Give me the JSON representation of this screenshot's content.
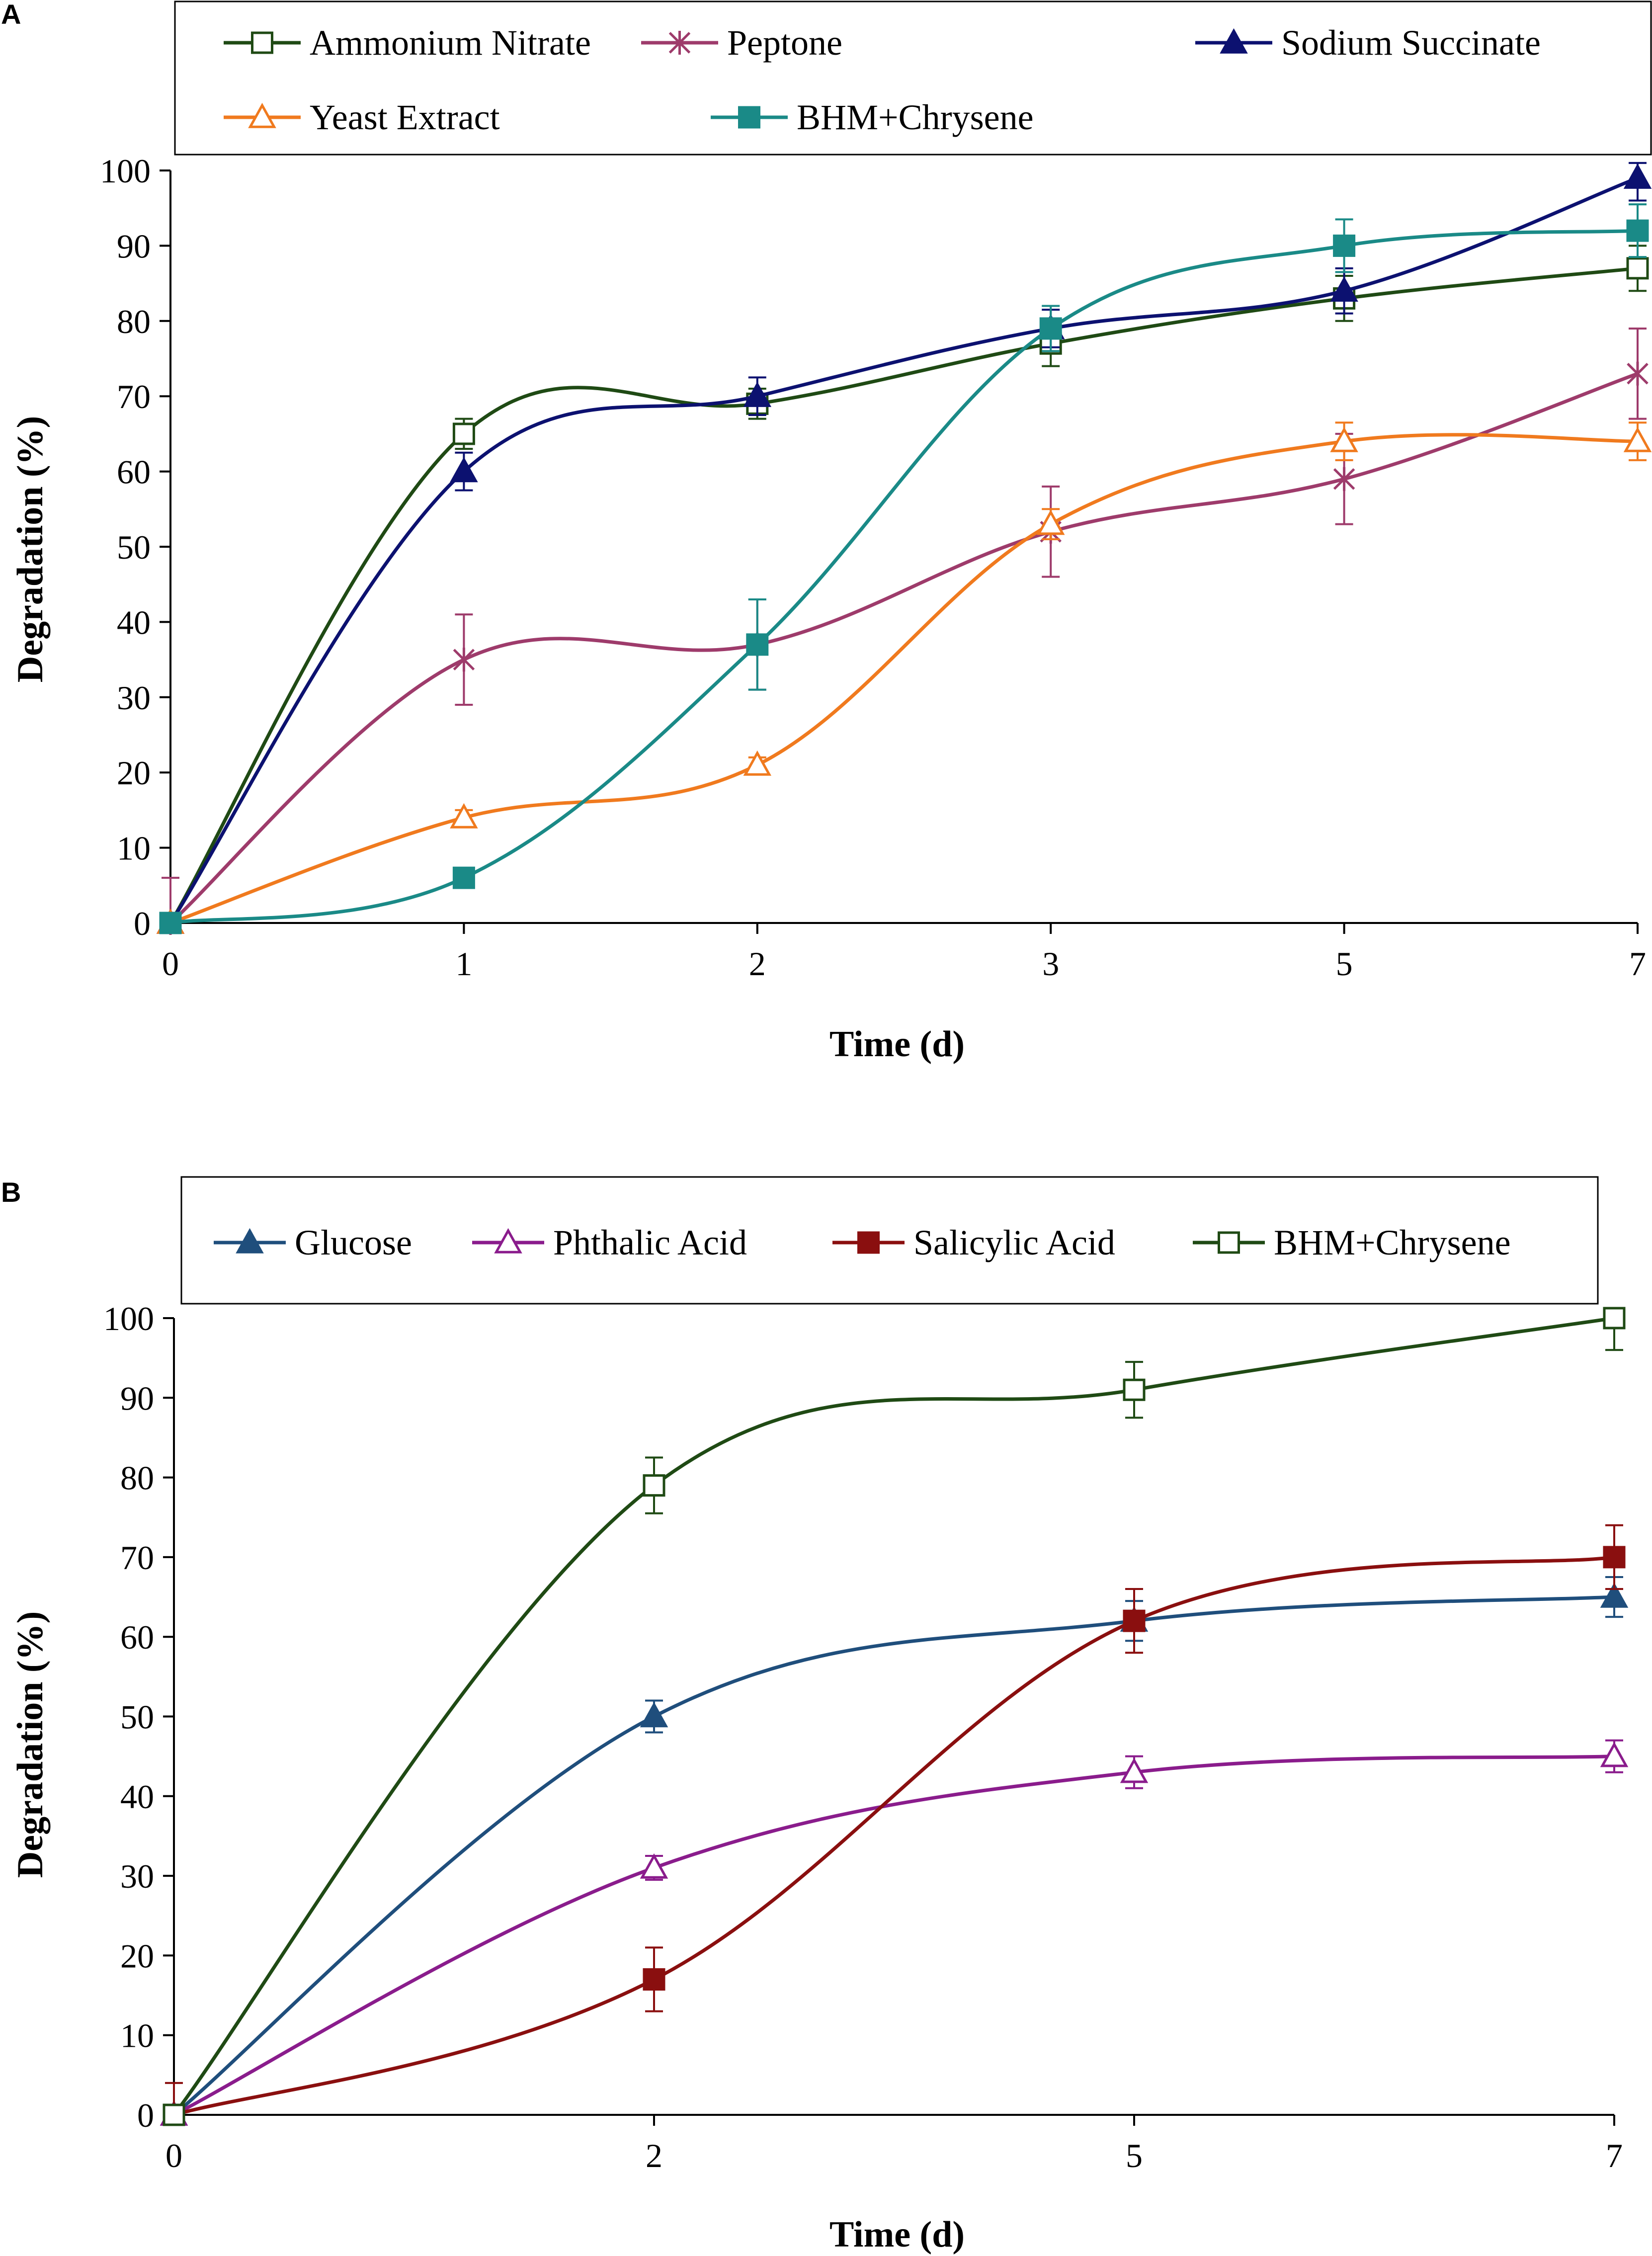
{
  "chart_data": [
    {
      "type": "line",
      "panel": "A",
      "xlabel": "Time (d)",
      "ylabel": "Degradation (%)",
      "categories": [
        "0",
        "1",
        "2",
        "3",
        "5",
        "7"
      ],
      "ylim": [
        0,
        100
      ],
      "yticks": [
        0,
        10,
        20,
        30,
        40,
        50,
        60,
        70,
        80,
        90,
        100
      ],
      "grid": false,
      "legend": "top",
      "series": [
        {
          "name": "Ammonium Nitrate",
          "color": "#1f4a14",
          "marker": "square-open",
          "values": [
            0,
            65,
            69,
            77,
            83,
            87
          ],
          "errors": [
            0,
            2,
            2,
            3,
            3,
            3
          ]
        },
        {
          "name": "Peptone",
          "color": "#9e3b6b",
          "marker": "star",
          "values": [
            0,
            35,
            37,
            52,
            59,
            73
          ],
          "errors": [
            6,
            6,
            6,
            6,
            6,
            6
          ]
        },
        {
          "name": "Sodium Succinate",
          "color": "#0c1170",
          "marker": "triangle-filled",
          "values": [
            0,
            60,
            70,
            79,
            84,
            99
          ],
          "errors": [
            0,
            2.5,
            2.5,
            2.5,
            3,
            3
          ]
        },
        {
          "name": "Yeast Extract",
          "color": "#f07a1e",
          "marker": "triangle-open",
          "values": [
            0,
            14,
            21,
            53,
            64,
            64
          ],
          "errors": [
            0,
            1,
            1,
            2,
            2.5,
            2.5
          ]
        },
        {
          "name": "BHM+Chrysene",
          "color": "#1a8a87",
          "marker": "square-filled",
          "values": [
            0,
            6,
            37,
            79,
            90,
            92
          ],
          "errors": [
            0,
            0,
            6,
            3,
            3.5,
            3.5
          ]
        }
      ]
    },
    {
      "type": "line",
      "panel": "B",
      "xlabel": "Time (d)",
      "ylabel": "Degradation (%)",
      "categories": [
        "0",
        "2",
        "5",
        "7"
      ],
      "ylim": [
        0,
        100
      ],
      "yticks": [
        0,
        10,
        20,
        30,
        40,
        50,
        60,
        70,
        80,
        90,
        100
      ],
      "grid": false,
      "legend": "top",
      "series": [
        {
          "name": "Glucose",
          "color": "#1f4e7c",
          "marker": "triangle-filled",
          "values": [
            0,
            50,
            62,
            65
          ],
          "errors": [
            0,
            2,
            2.5,
            2.5
          ]
        },
        {
          "name": "Phthalic Acid",
          "color": "#8a1c8c",
          "marker": "triangle-open",
          "values": [
            0,
            31,
            43,
            45
          ],
          "errors": [
            0,
            1.5,
            2,
            2
          ]
        },
        {
          "name": "Salicylic Acid",
          "color": "#8a0f0f",
          "marker": "square-filled",
          "values": [
            0,
            17,
            62,
            70
          ],
          "errors": [
            4,
            4,
            4,
            4
          ]
        },
        {
          "name": "BHM+Chrysene",
          "color": "#1f4a14",
          "marker": "square-open",
          "values": [
            0,
            79,
            91,
            100
          ],
          "errors": [
            0,
            3.5,
            3.5,
            4
          ]
        }
      ]
    }
  ]
}
